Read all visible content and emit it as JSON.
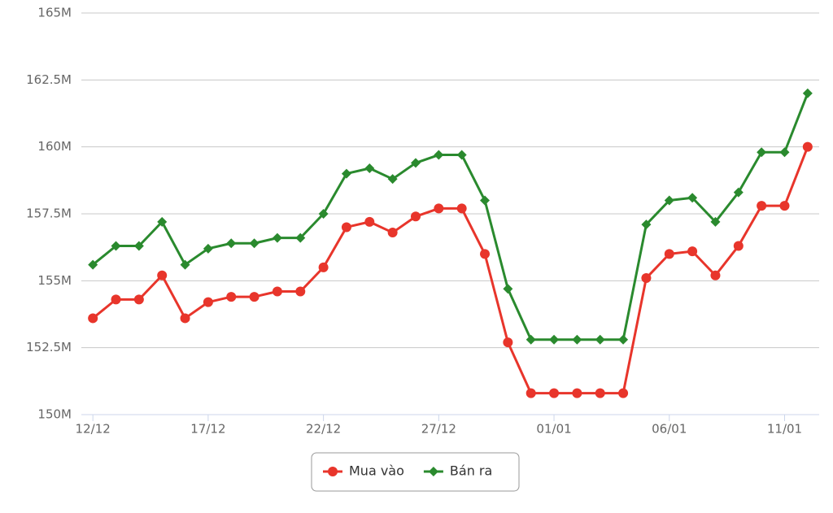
{
  "chart_data": {
    "type": "line",
    "categories": [
      "12/12",
      null,
      null,
      null,
      null,
      "17/12",
      null,
      null,
      null,
      null,
      "22/12",
      null,
      null,
      null,
      null,
      "27/12",
      null,
      null,
      null,
      null,
      "01/01",
      null,
      null,
      null,
      null,
      "06/01",
      null,
      null,
      null,
      null,
      "11/01",
      null
    ],
    "series": [
      {
        "name": "Mua vào",
        "color": "#e8352b",
        "marker": "circle",
        "values": [
          153600000,
          154300000,
          154300000,
          155200000,
          153600000,
          154200000,
          154400000,
          154400000,
          154600000,
          154600000,
          155500000,
          157000000,
          157200000,
          156800000,
          157400000,
          157700000,
          157700000,
          156000000,
          152700000,
          150800000,
          150800000,
          150800000,
          150800000,
          150800000,
          155100000,
          156000000,
          156100000,
          155200000,
          156300000,
          157800000,
          157800000,
          160000000
        ]
      },
      {
        "name": "Bán ra",
        "color": "#2a8a2e",
        "marker": "diamond",
        "values": [
          155600000,
          156300000,
          156300000,
          157200000,
          155600000,
          156200000,
          156400000,
          156400000,
          156600000,
          156600000,
          157500000,
          159000000,
          159200000,
          158800000,
          159400000,
          159700000,
          159700000,
          158000000,
          154700000,
          152800000,
          152800000,
          152800000,
          152800000,
          152800000,
          157100000,
          158000000,
          158100000,
          157200000,
          158300000,
          159800000,
          159800000,
          162000000
        ]
      }
    ],
    "ylim": [
      150000000,
      165000000
    ],
    "yticks": [
      {
        "value": 150000000,
        "label": "150M"
      },
      {
        "value": 152500000,
        "label": "152.5M"
      },
      {
        "value": 155000000,
        "label": "155M"
      },
      {
        "value": 157500000,
        "label": "157.5M"
      },
      {
        "value": 160000000,
        "label": "160M"
      },
      {
        "value": 162500000,
        "label": "162.5M"
      },
      {
        "value": 165000000,
        "label": "165M"
      }
    ],
    "grid": true,
    "legend": "bottom"
  }
}
